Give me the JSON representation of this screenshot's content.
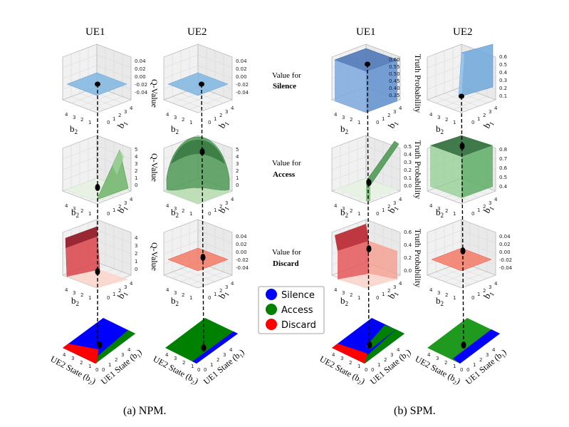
{
  "columns": {
    "npm_ue1": "UE1",
    "npm_ue2": "UE2",
    "spm_ue1": "UE1",
    "spm_ue2": "UE2"
  },
  "row_labels": {
    "silence_prefix": "Value for",
    "silence_bold": "Silence",
    "access_prefix": "Value for",
    "access_bold": "Access",
    "discard_prefix": "Value for",
    "discard_bold": "Discard"
  },
  "z_labels": {
    "npm_1": "Q-Value",
    "npm_2": "Q-Value",
    "npm_3": "Q-Value",
    "spm_1": "Truth Probability",
    "spm_2": "Truth Probability",
    "spm_3": "Truth Probability"
  },
  "axis_labels": {
    "b1": "b",
    "b1_sub": "1",
    "b2": "b",
    "b2_sub": "2",
    "ue2_state": "UE2 State (b",
    "ue2_state_sub": "2",
    "ue1_state": "UE1 State (b",
    "ue1_state_sub": "1",
    "close_paren": ")"
  },
  "ticks": {
    "b_values": [
      "4",
      "3",
      "2",
      "1",
      "0"
    ],
    "b_values_asc": [
      "0",
      "1",
      "2",
      "3",
      "4"
    ],
    "q_small": [
      "0.04",
      "0.02",
      "0.00",
      "-0.02",
      "-0.04"
    ],
    "q_access_ue1": [
      "5",
      "4",
      "3",
      "2",
      "1",
      "0"
    ],
    "q_access_ue2": [
      "5",
      "4",
      "3",
      "2",
      "1",
      "0"
    ],
    "q_discard_ue1": [
      "4",
      "3",
      "2",
      "1",
      "0"
    ],
    "p_silence_ue1": [
      "0.60",
      "0.55",
      "0.50",
      "0.45",
      "0.40",
      "0.35"
    ],
    "p_silence_ue2": [
      "0.6",
      "0.5",
      "0.4",
      "0.3",
      "0.2",
      "0.1"
    ],
    "p_access_ue1": [
      "0.5",
      "0.4",
      "0.3",
      "0.2",
      "0.1",
      "0.0"
    ],
    "p_access_ue2": [
      "0.8",
      "0.7",
      "0.6",
      "0.5",
      "0.4"
    ],
    "p_discard_ue1": [
      "0.6",
      "0.4",
      "0.2",
      "0.0"
    ],
    "p_discard_ue2": [
      "0.04",
      "0.02",
      "0.00",
      "-0.02",
      "-0.04"
    ]
  },
  "legend": {
    "items": [
      {
        "label": "Silence",
        "color": "#0000ff"
      },
      {
        "label": "Access",
        "color": "#008000"
      },
      {
        "label": "Discard",
        "color": "#ff0000"
      }
    ]
  },
  "captions": {
    "npm": "(a) NPM.",
    "spm": "(b) SPM."
  },
  "colors": {
    "silence_surface": "#7fb6e0",
    "access_surface": "#3f9a4a",
    "discard_surface": "#f47a66",
    "silence": "#0000ff",
    "access": "#008000",
    "discard": "#ff0000"
  }
}
